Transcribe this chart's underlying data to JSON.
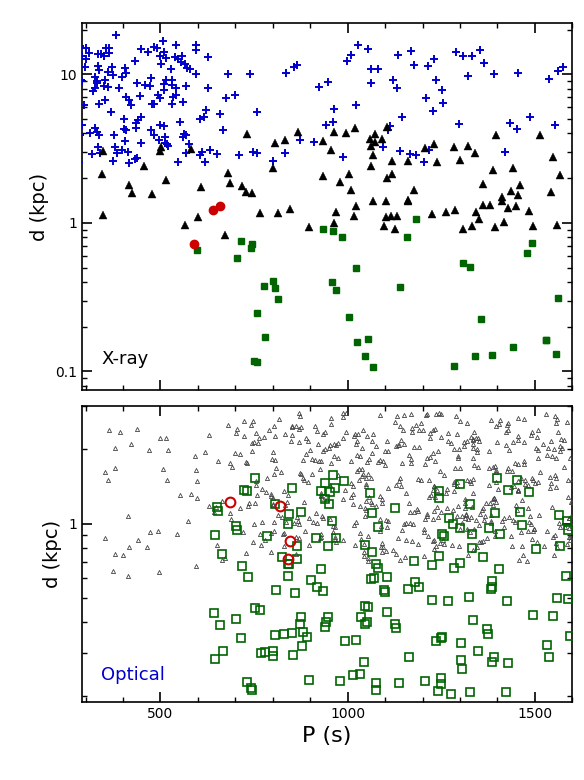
{
  "xmin": 290,
  "xmax": 1600,
  "xray_ylim": [
    0.075,
    22
  ],
  "optical_ylim": [
    0.19,
    3.0
  ],
  "xlabel": "P (s)",
  "ylabel_top": "d (kpc)",
  "ylabel_bot": "d (kpc)",
  "label_top": "X-ray",
  "label_bot": "Optical",
  "label_top_color": "#000000",
  "label_bot_color": "#0000cc",
  "blue_plus_color": "#0000cc",
  "black_tri_color": "#000000",
  "green_sq_color": "#006400",
  "red_dot_color": "#cc0000",
  "gray_tri_color": "#444444",
  "green_sq_open_color": "#006400",
  "red_circ_color": "#cc0000"
}
